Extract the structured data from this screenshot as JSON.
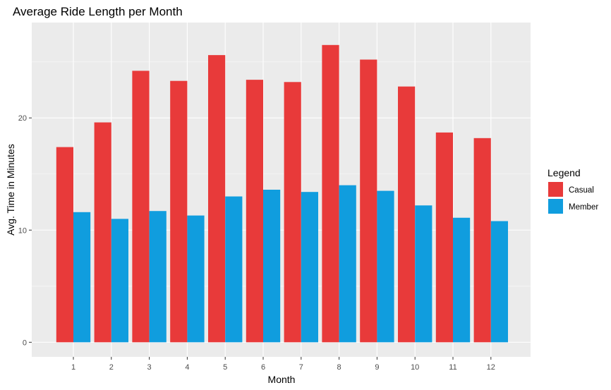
{
  "chart_data": {
    "type": "bar",
    "title": "Average Ride Length per Month",
    "xlabel": "Month",
    "ylabel": "Avg. Time in Minutes",
    "categories": [
      "1",
      "2",
      "3",
      "4",
      "5",
      "6",
      "7",
      "8",
      "9",
      "10",
      "11",
      "12"
    ],
    "series": [
      {
        "name": "Casual",
        "color": "#E83A3A",
        "values": [
          17.4,
          19.6,
          24.2,
          23.3,
          25.6,
          23.4,
          23.2,
          26.5,
          25.2,
          22.8,
          18.7,
          18.2
        ]
      },
      {
        "name": "Member",
        "color": "#109DDE",
        "values": [
          11.6,
          11.0,
          11.7,
          11.3,
          13.0,
          13.6,
          13.4,
          14.0,
          13.5,
          12.2,
          11.1,
          10.8
        ]
      }
    ],
    "yticks": [
      0,
      10,
      20
    ],
    "ylim": [
      -1.3,
      28.5
    ],
    "grid": true,
    "legend": {
      "title": "Legend",
      "placement": "right"
    }
  }
}
